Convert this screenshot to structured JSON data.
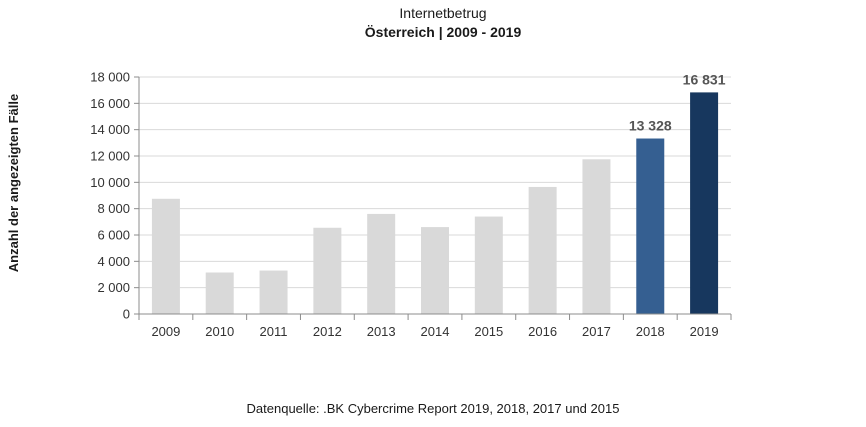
{
  "chart_data": {
    "type": "bar",
    "title": "Internetbetrug",
    "subtitle": "Österreich | 2009 - 2019",
    "ylabel": "Anzahl der angezeigten Fälle",
    "xlabel": "",
    "ylim": [
      0,
      18000
    ],
    "y_ticks": [
      0,
      2000,
      4000,
      6000,
      8000,
      10000,
      12000,
      14000,
      16000,
      18000
    ],
    "y_tick_labels": [
      "0",
      "2 000",
      "4 000",
      "6 000",
      "8 000",
      "10 000",
      "12 000",
      "14 000",
      "16 000",
      "18 000"
    ],
    "categories": [
      "2009",
      "2010",
      "2011",
      "2012",
      "2013",
      "2014",
      "2015",
      "2016",
      "2017",
      "2018",
      "2019"
    ],
    "values": [
      8750,
      3150,
      3300,
      6550,
      7600,
      6600,
      7400,
      9650,
      11750,
      13328,
      16831
    ],
    "data_labels": [
      "",
      "",
      "",
      "",
      "",
      "",
      "",
      "",
      "",
      "13 328",
      "16 831"
    ],
    "bar_colors": [
      "#d9d9d9",
      "#d9d9d9",
      "#d9d9d9",
      "#d9d9d9",
      "#d9d9d9",
      "#d9d9d9",
      "#d9d9d9",
      "#d9d9d9",
      "#d9d9d9",
      "#355f91",
      "#17375e"
    ],
    "grid": true,
    "legend": "none"
  },
  "source": "Datenquelle: .BK Cybercrime Report 2019, 2018, 2017 und 2015"
}
